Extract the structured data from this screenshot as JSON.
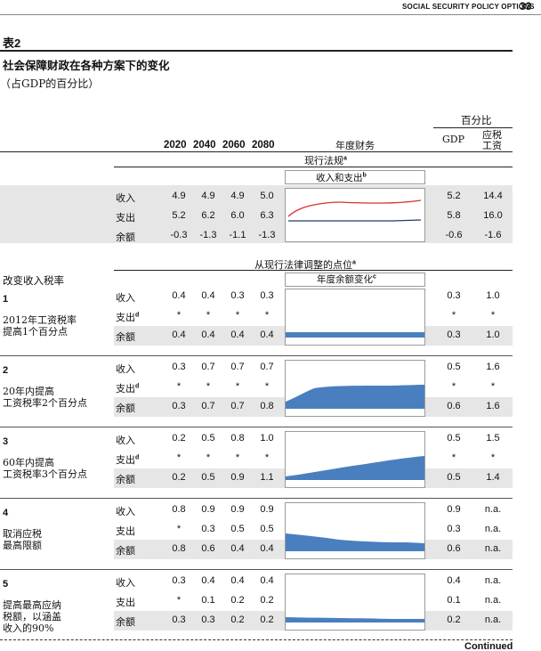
{
  "running_head": "SOCIAL SECURITY POLICY OPTIONS",
  "page_number": "33",
  "table_label": "表2",
  "title": "社会保障财政在各种方案下的变化",
  "subtitle": "（占GDP的百分比）",
  "years": [
    "2020",
    "2040",
    "2060",
    "2080"
  ],
  "col_annual": "年度财务",
  "col_pct": "百分比",
  "col_gdp": "GDP",
  "col_wage": "应税工资",
  "current_law": {
    "label": "现行法规",
    "sup": "a",
    "chart_label": "收入和支出",
    "chart_sup": "b",
    "rows": [
      {
        "name": "收入",
        "v": [
          "4.9",
          "4.9",
          "4.9",
          "5.0"
        ],
        "gdp": "5.2",
        "wage": "14.4"
      },
      {
        "name": "支出",
        "v": [
          "5.2",
          "6.2",
          "6.0",
          "6.3"
        ],
        "gdp": "5.8",
        "wage": "16.0"
      },
      {
        "name": "余额",
        "v": [
          "-0.3",
          "-1.3",
          "-1.1",
          "-1.3"
        ],
        "gdp": "-0.6",
        "wage": "-1.6"
      }
    ]
  },
  "section_label": "从现行法律调整的点位",
  "section_sup": "a",
  "chart2_label": "年度余额变化",
  "chart2_sup": "c",
  "group_label": "改变收入税率",
  "options": [
    {
      "num": "1",
      "desc1": "2012年工资税率",
      "desc2": "提高1个百分点",
      "rows": [
        {
          "name": "收入",
          "sup": "",
          "v": [
            "0.4",
            "0.4",
            "0.3",
            "0.3"
          ],
          "gdp": "0.3",
          "wage": "1.0"
        },
        {
          "name": "支出",
          "sup": "d",
          "v": [
            "*",
            "*",
            "*",
            "*"
          ],
          "gdp": "*",
          "wage": "*"
        },
        {
          "name": "余额",
          "sup": "",
          "v": [
            "0.4",
            "0.4",
            "0.4",
            "0.4"
          ],
          "gdp": "0.3",
          "wage": "1.0"
        }
      ]
    },
    {
      "num": "2",
      "desc1": "20年内提高",
      "desc2": "工资税率2个百分点",
      "rows": [
        {
          "name": "收入",
          "sup": "",
          "v": [
            "0.3",
            "0.7",
            "0.7",
            "0.7"
          ],
          "gdp": "0.5",
          "wage": "1.6"
        },
        {
          "name": "支出",
          "sup": "d",
          "v": [
            "*",
            "*",
            "*",
            "*"
          ],
          "gdp": "*",
          "wage": "*"
        },
        {
          "name": "余额",
          "sup": "",
          "v": [
            "0.3",
            "0.7",
            "0.7",
            "0.8"
          ],
          "gdp": "0.6",
          "wage": "1.6"
        }
      ]
    },
    {
      "num": "3",
      "desc1": "60年内提高",
      "desc2": "工资税率3个百分点",
      "rows": [
        {
          "name": "收入",
          "sup": "",
          "v": [
            "0.2",
            "0.5",
            "0.8",
            "1.0"
          ],
          "gdp": "0.5",
          "wage": "1.5"
        },
        {
          "name": "支出",
          "sup": "d",
          "v": [
            "*",
            "*",
            "*",
            "*"
          ],
          "gdp": "*",
          "wage": "*"
        },
        {
          "name": "余额",
          "sup": "",
          "v": [
            "0.2",
            "0.5",
            "0.9",
            "1.1"
          ],
          "gdp": "0.5",
          "wage": "1.4"
        }
      ]
    },
    {
      "num": "4",
      "desc1": "取消应税",
      "desc2": "最高限额",
      "rows": [
        {
          "name": "收入",
          "sup": "",
          "v": [
            "0.8",
            "0.9",
            "0.9",
            "0.9"
          ],
          "gdp": "0.9",
          "wage": "n.a."
        },
        {
          "name": "支出",
          "sup": "",
          "v": [
            "*",
            "0.3",
            "0.5",
            "0.5"
          ],
          "gdp": "0.3",
          "wage": "n.a."
        },
        {
          "name": "余额",
          "sup": "",
          "v": [
            "0.8",
            "0.6",
            "0.4",
            "0.4"
          ],
          "gdp": "0.6",
          "wage": "n.a."
        }
      ]
    },
    {
      "num": "5",
      "desc1": "提高最高应纳",
      "desc2": "税额，以涵盖",
      "desc3": "收入的90%",
      "rows": [
        {
          "name": "收入",
          "sup": "",
          "v": [
            "0.3",
            "0.4",
            "0.4",
            "0.4"
          ],
          "gdp": "0.4",
          "wage": "n.a."
        },
        {
          "name": "支出",
          "sup": "",
          "v": [
            "*",
            "0.1",
            "0.2",
            "0.2"
          ],
          "gdp": "0.1",
          "wage": "n.a."
        },
        {
          "name": "余额",
          "sup": "",
          "v": [
            "0.3",
            "0.3",
            "0.2",
            "0.2"
          ],
          "gdp": "0.2",
          "wage": "n.a."
        }
      ]
    }
  ],
  "continued": "Continued",
  "colors": {
    "revenue_line": "#d9302c",
    "outlay_line": "#1f3a6b",
    "area": "#4a7fbf",
    "shade": "#e6e6e6"
  }
}
